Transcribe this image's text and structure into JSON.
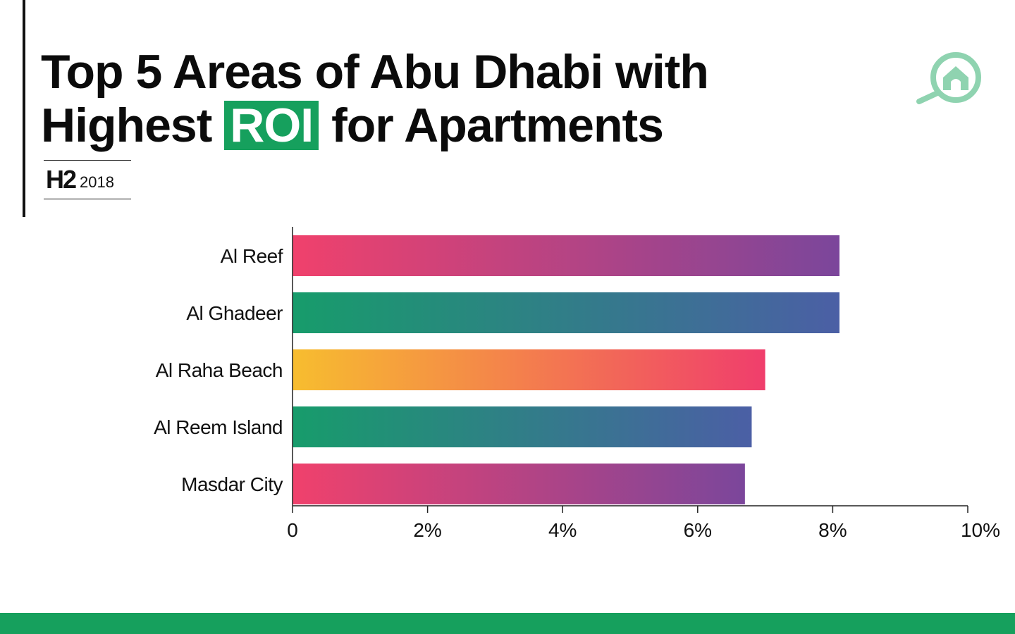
{
  "header": {
    "title_line1": "Top 5 Areas of Abu Dhabi with",
    "title_line2_pre": "Highest",
    "title_highlight": "ROI",
    "title_line2_post": "for Apartments",
    "period_label": "H2",
    "period_year": "2018"
  },
  "brand": {
    "logo_icon": "magnifier-house-icon",
    "accent_color": "#16a05d",
    "logo_color": "#8fd3b0"
  },
  "chart_data": {
    "type": "bar",
    "orientation": "horizontal",
    "categories": [
      "Al Reef",
      "Al Ghadeer",
      "Al Raha Beach",
      "Al Reem Island",
      "Masdar City"
    ],
    "values": [
      8.1,
      8.1,
      7.0,
      6.8,
      6.7
    ],
    "unit": "%",
    "xlim": [
      0,
      10
    ],
    "xticks": [
      0,
      2,
      4,
      6,
      8,
      10
    ],
    "xtick_labels": [
      "0",
      "2%",
      "4%",
      "6%",
      "8%",
      "10%"
    ],
    "grid": false,
    "bar_gradients": [
      [
        "#f0416c",
        "#7b469b"
      ],
      [
        "#179c6b",
        "#4b5fa5"
      ],
      [
        "#f7bd2f",
        "#f03e6c"
      ],
      [
        "#179c6b",
        "#4b5fa5"
      ],
      [
        "#f0416c",
        "#7b469b"
      ]
    ]
  }
}
